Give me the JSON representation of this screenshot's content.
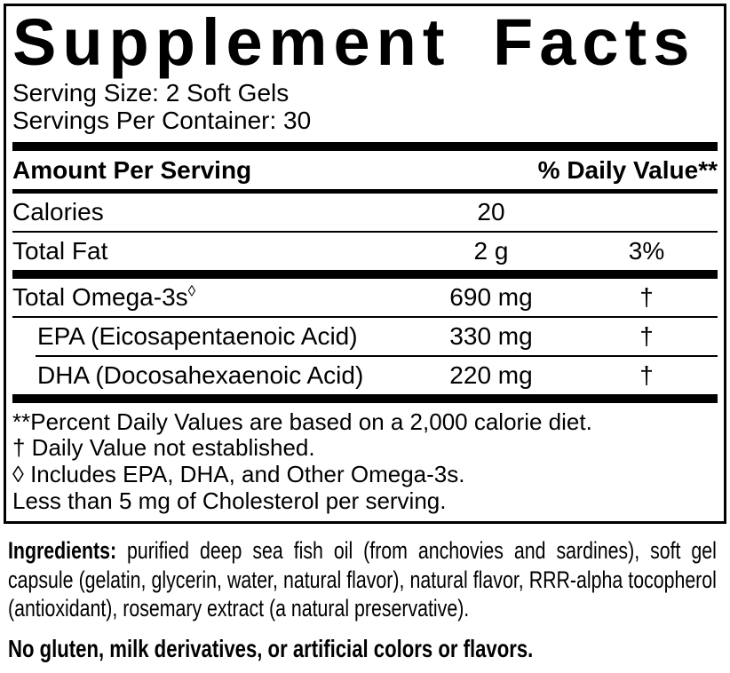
{
  "panel": {
    "title": "Supplement Facts",
    "serving_size": "Serving Size: 2 Soft Gels",
    "servings_per_container": "Servings Per Container: 30",
    "header": {
      "amount": "Amount Per Serving",
      "daily_value": "% Daily Value**"
    },
    "rows": [
      {
        "name": "Calories",
        "amount": "20",
        "dv": ""
      },
      {
        "name": "Total Fat",
        "amount": "2 g",
        "dv": "3%"
      },
      {
        "name": "Total Omega-3s",
        "marker": "◊",
        "amount": "690 mg",
        "dv": "†"
      },
      {
        "name": "EPA (Eicosapentaenoic Acid)",
        "amount": "330 mg",
        "dv": "†"
      },
      {
        "name": "DHA (Docosahexaenoic Acid)",
        "amount": "220 mg",
        "dv": "†"
      }
    ],
    "footnotes": [
      "**Percent Daily Values are based on a 2,000 calorie diet.",
      "† Daily Value not established.",
      "◊ Includes EPA, DHA, and Other Omega-3s.",
      "Less than 5 mg of Cholesterol per serving."
    ]
  },
  "ingredients": {
    "label": "Ingredients:",
    "text": " purified deep sea fish oil (from anchovies and sardines), soft gel capsule (gelatin, glycerin, water, natural flavor), natural flavor, RRR-alpha tocopherol (antioxidant), rosemary extract (a natural preservative)."
  },
  "allergen_statement": "No gluten, milk derivatives, or artificial colors or flavors.",
  "colors": {
    "ink": "#000000",
    "background": "#ffffff"
  }
}
